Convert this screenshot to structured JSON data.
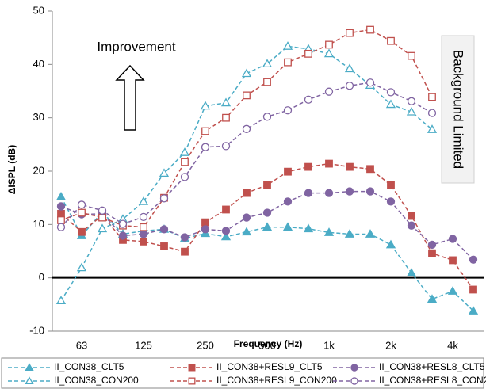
{
  "chart_data": {
    "type": "line",
    "y_label": "ΔISPL (dB)",
    "x_label": "Frequency (Hz)",
    "annotations": [
      "Improvement",
      "Background Limited"
    ],
    "categories": [
      null,
      "63",
      null,
      null,
      "125",
      null,
      null,
      "250",
      null,
      null,
      "500",
      null,
      null,
      "1k",
      null,
      null,
      "2k",
      null,
      null,
      "4k",
      null
    ],
    "ylim": [
      -10,
      50
    ],
    "yticks": [
      -10,
      0,
      10,
      20,
      30,
      40,
      50
    ],
    "series": [
      {
        "name": "II_CON38_CLT5",
        "color": "#4bacc6",
        "marker": "triangle",
        "filled": true,
        "values": [
          15.2,
          7.9,
          12.3,
          8.2,
          8.8,
          9.1,
          7.4,
          8.3,
          7.7,
          8.6,
          9.5,
          9.5,
          9.2,
          8.5,
          8.2,
          8.2,
          6.2,
          0.9,
          -4,
          -2.5,
          -6.2
        ]
      },
      {
        "name": "II_CON38+RESL9_CLT5",
        "color": "#c0504d",
        "marker": "square",
        "filled": true,
        "values": [
          12,
          8.6,
          11.7,
          7.1,
          6.8,
          5.9,
          4.9,
          10.4,
          12.8,
          15.9,
          17.4,
          19.9,
          20.8,
          21.4,
          20.8,
          20.4,
          17.4,
          11.6,
          4.6,
          3.3,
          -2.2
        ]
      },
      {
        "name": "II_CON38+RESL8_CLT5",
        "color": "#8064a2",
        "marker": "circle",
        "filled": true,
        "values": [
          13.4,
          11.9,
          12,
          7.9,
          8.2,
          9.1,
          7.6,
          9.1,
          8.8,
          11.3,
          12.2,
          14.3,
          15.9,
          15.9,
          16.2,
          16.2,
          14.3,
          9.8,
          6.2,
          7.3,
          3.4
        ]
      },
      {
        "name": "II_CON38_CON200",
        "color": "#4bacc6",
        "marker": "triangle",
        "filled": false,
        "values": [
          -4.3,
          1.9,
          9.2,
          11,
          14.3,
          19.6,
          23.5,
          32.2,
          32.8,
          38.3,
          40.1,
          43.4,
          42.9,
          42,
          39.2,
          36.1,
          32.5,
          31.1,
          27.8,
          null,
          null
        ]
      },
      {
        "name": "II_CON38+RESL9_CON200",
        "color": "#c0504d",
        "marker": "square",
        "filled": false,
        "values": [
          10.8,
          12.2,
          11.3,
          9.8,
          9.5,
          15,
          21.7,
          27.5,
          30,
          34.2,
          36.7,
          40.4,
          42,
          43.7,
          45.9,
          46.5,
          44.4,
          41.6,
          33.9,
          null,
          null
        ]
      },
      {
        "name": "II_CON38+RESL8_CON200",
        "color": "#8064a2",
        "marker": "circle",
        "filled": false,
        "values": [
          9.5,
          13.7,
          12.6,
          10.1,
          11.4,
          14.9,
          18.9,
          24.5,
          24.7,
          27.9,
          30.2,
          31.4,
          33.4,
          34.9,
          36,
          36.6,
          34.8,
          33.1,
          30.9,
          null,
          null
        ]
      }
    ]
  }
}
